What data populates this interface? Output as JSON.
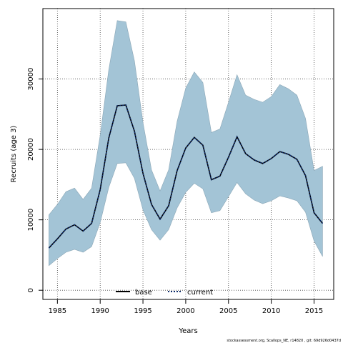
{
  "chart_data": {
    "type": "area",
    "xlabel": "Years",
    "ylabel": "Recruits (age 3)",
    "xlim": [
      1983.3,
      2017.3
    ],
    "ylim": [
      -1300,
      40000
    ],
    "xticks": [
      1985,
      1990,
      1995,
      2000,
      2005,
      2010,
      2015
    ],
    "yticks": [
      0,
      10000,
      20000,
      30000
    ],
    "grid": true,
    "legend_position": "bottom-center",
    "x": [
      1984,
      1985,
      1986,
      1987,
      1988,
      1989,
      1990,
      1991,
      1992,
      1993,
      1994,
      1995,
      1996,
      1997,
      1998,
      1999,
      2000,
      2001,
      2002,
      2003,
      2004,
      2005,
      2006,
      2007,
      2008,
      2009,
      2010,
      2011,
      2012,
      2013,
      2014,
      2015,
      2016
    ],
    "interval": {
      "upper": [
        10700,
        12200,
        14000,
        14500,
        12900,
        14500,
        22000,
        31300,
        38300,
        38100,
        32600,
        23800,
        17100,
        14100,
        17100,
        24000,
        28700,
        31000,
        29500,
        22400,
        22900,
        26700,
        30600,
        27700,
        27100,
        26700,
        27500,
        29200,
        28600,
        27700,
        24400,
        17000,
        17600
      ],
      "lower": [
        3500,
        4500,
        5400,
        5800,
        5400,
        6200,
        9600,
        14600,
        18000,
        18100,
        15900,
        11400,
        8600,
        7100,
        8600,
        11700,
        13900,
        15200,
        14400,
        11000,
        11300,
        13300,
        15300,
        13700,
        12800,
        12300,
        12700,
        13400,
        13100,
        12700,
        11100,
        7000,
        4800
      ]
    },
    "series": [
      {
        "name": "base",
        "values": [
          6000,
          7300,
          8700,
          9300,
          8400,
          9500,
          14300,
          21600,
          26200,
          26300,
          22600,
          16600,
          12200,
          10100,
          12000,
          17000,
          20200,
          21700,
          20600,
          15700,
          16200,
          18900,
          21800,
          19400,
          18500,
          18000,
          18700,
          19700,
          19300,
          18600,
          16300,
          11000,
          9500
        ]
      },
      {
        "name": "current",
        "values": [
          6000,
          7300,
          8700,
          9300,
          8400,
          9500,
          14300,
          21600,
          26200,
          26300,
          22600,
          16600,
          12200,
          10100,
          12000,
          17000,
          20200,
          21700,
          20600,
          15700,
          16200,
          18900,
          21800,
          19400,
          18500,
          18000,
          18700,
          19700,
          19300,
          18600,
          16300,
          11000,
          9500
        ]
      }
    ],
    "colors": {
      "interval_fill": "#a3c4d6",
      "interval_edge": "#8aa6b6",
      "base": "#000000",
      "current": "#0b2a6b"
    }
  },
  "footnote": "stockassessment.org, Scallops_NE, r14820 , git: 69d926d0437d"
}
